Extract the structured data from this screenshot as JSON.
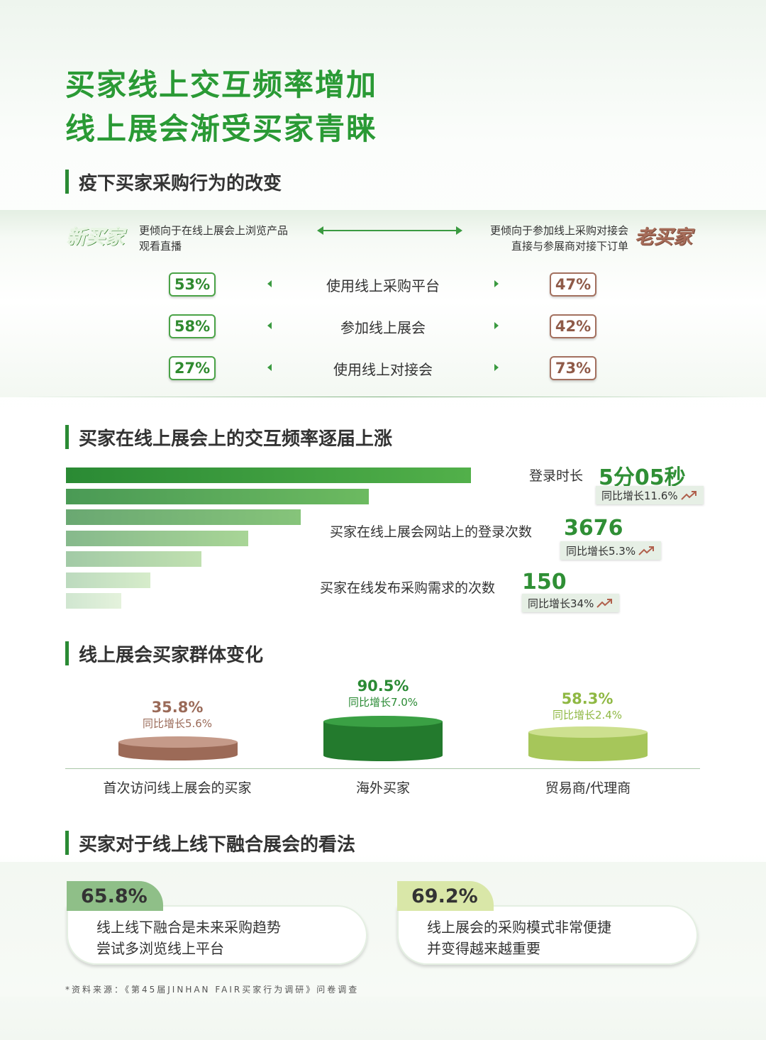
{
  "header": {
    "title_line1": "买家线上交互频率增加",
    "title_line2": "线上展会渐受买家青睐"
  },
  "section1": {
    "heading": "疫下买家采购行为的改变",
    "new_buyer": {
      "tag": "新买家",
      "desc_line1": "更倾向于在线上展会上浏览产品",
      "desc_line2": "观看直播"
    },
    "old_buyer": {
      "tag": "老买家",
      "desc_line1": "更倾向于参加线上采购对接会",
      "desc_line2": "直接与参展商对接下订单"
    },
    "rows": [
      {
        "label": "使用线上采购平台",
        "new": "53%",
        "old": "47%"
      },
      {
        "label": "参加线上展会",
        "new": "58%",
        "old": "42%"
      },
      {
        "label": "使用线上对接会",
        "new": "27%",
        "old": "73%"
      }
    ]
  },
  "section2": {
    "heading": "买家在线上展会上的交互频率逐届上涨",
    "stats": [
      {
        "label": "登录时长",
        "value": "5分05秒",
        "yoy": "同比增长11.6%"
      },
      {
        "label": "买家在线上展会网站上的登录次数",
        "value": "3676",
        "yoy": "同比增长5.3%"
      },
      {
        "label": "买家在线发布采购需求的次数",
        "value": "150",
        "yoy": "同比增长34%"
      }
    ]
  },
  "section3": {
    "heading": "线上展会买家群体变化",
    "groups": [
      {
        "label": "首次访问线上展会的买家",
        "value": "35.8%",
        "yoy": "同比增长5.6%",
        "color": "#a67563"
      },
      {
        "label": "海外买家",
        "value": "90.5%",
        "yoy": "同比增长7.0%",
        "color": "#2a8a34"
      },
      {
        "label": "贸易商/代理商",
        "value": "58.3%",
        "yoy": "同比增长2.4%",
        "color": "#a9c95a"
      }
    ]
  },
  "section4": {
    "heading": "买家对于线上线下融合展会的看法",
    "cards": [
      {
        "pct": "65.8%",
        "line1": "线上线下融合是未来采购趋势",
        "line2": "尝试多浏览线上平台",
        "tab_color": "#8fbf88"
      },
      {
        "pct": "69.2%",
        "line1": "线上展会的采购模式非常便捷",
        "line2": "并变得越来越重要",
        "tab_color": "#d9e7a8"
      }
    ]
  },
  "footer": {
    "source": "*资料来源：《第45届JINHAN FAIR买家行为调研》问卷调查"
  }
}
